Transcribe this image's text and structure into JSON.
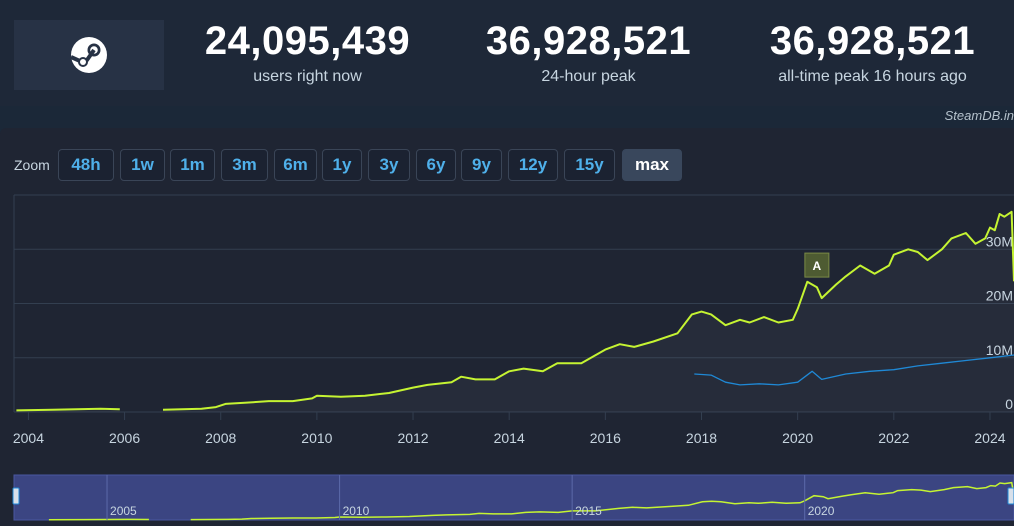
{
  "stats": [
    {
      "value": "24,095,439",
      "label": "users right now"
    },
    {
      "value": "36,928,521",
      "label": "24-hour peak"
    },
    {
      "value": "36,928,521",
      "label": "all-time peak 16 hours ago"
    }
  ],
  "source": "SteamDB.in",
  "zoom": {
    "label": "Zoom",
    "options": [
      "48h",
      "1w",
      "1m",
      "3m",
      "6m",
      "1y",
      "3y",
      "6y",
      "9y",
      "12y",
      "15y",
      "max"
    ],
    "selected": "max"
  },
  "colors": {
    "users": "#c5f432",
    "secondary": "#1f89d6",
    "accent_button": "#4fb0ea"
  },
  "chart_data": {
    "type": "line",
    "x_ticks": [
      "2004",
      "2006",
      "2008",
      "2010",
      "2012",
      "2014",
      "2016",
      "2018",
      "2020",
      "2022",
      "2024"
    ],
    "y_ticks": [
      "0",
      "10M",
      "20M",
      "30M"
    ],
    "ylim": [
      0,
      40000000
    ],
    "xlim": [
      2003.7,
      2024.5
    ],
    "grid": true,
    "annotation": {
      "label": "A",
      "x": 2020.4,
      "y": 24500000
    },
    "series": [
      {
        "color": "#c5f432",
        "segments": [
          [
            [
              2003.75,
              300000
            ],
            [
              2004.5,
              400000
            ],
            [
              2005.0,
              500000
            ],
            [
              2005.5,
              600000
            ],
            [
              2005.9,
              500000
            ]
          ],
          [
            [
              2006.8,
              400000
            ],
            [
              2007.2,
              500000
            ],
            [
              2007.6,
              600000
            ],
            [
              2007.9,
              900000
            ],
            [
              2008.1,
              1500000
            ],
            [
              2008.5,
              1700000
            ],
            [
              2009.0,
              2000000
            ],
            [
              2009.5,
              2000000
            ],
            [
              2009.9,
              2500000
            ],
            [
              2010.0,
              3000000
            ],
            [
              2010.5,
              2800000
            ],
            [
              2011.0,
              3000000
            ],
            [
              2011.5,
              3500000
            ],
            [
              2012.0,
              4500000
            ],
            [
              2012.3,
              5000000
            ],
            [
              2012.8,
              5500000
            ],
            [
              2013.0,
              6500000
            ],
            [
              2013.3,
              6000000
            ],
            [
              2013.7,
              6000000
            ],
            [
              2014.0,
              7500000
            ],
            [
              2014.3,
              8000000
            ],
            [
              2014.7,
              7500000
            ],
            [
              2015.0,
              9000000
            ],
            [
              2015.5,
              9000000
            ],
            [
              2016.0,
              11500000
            ],
            [
              2016.3,
              12500000
            ],
            [
              2016.6,
              12000000
            ],
            [
              2017.0,
              13000000
            ],
            [
              2017.5,
              14500000
            ],
            [
              2017.8,
              18000000
            ],
            [
              2018.0,
              18500000
            ],
            [
              2018.2,
              18000000
            ],
            [
              2018.5,
              16000000
            ],
            [
              2018.8,
              17000000
            ],
            [
              2019.0,
              16500000
            ],
            [
              2019.3,
              17500000
            ],
            [
              2019.6,
              16500000
            ],
            [
              2019.9,
              17000000
            ],
            [
              2020.0,
              19000000
            ],
            [
              2020.2,
              24000000
            ],
            [
              2020.4,
              23000000
            ],
            [
              2020.5,
              21000000
            ],
            [
              2020.8,
              23500000
            ],
            [
              2021.0,
              25000000
            ],
            [
              2021.3,
              27000000
            ],
            [
              2021.6,
              25500000
            ],
            [
              2021.9,
              27000000
            ],
            [
              2022.0,
              29000000
            ],
            [
              2022.3,
              30000000
            ],
            [
              2022.5,
              29500000
            ],
            [
              2022.7,
              28000000
            ],
            [
              2023.0,
              30000000
            ],
            [
              2023.2,
              32000000
            ],
            [
              2023.5,
              33000000
            ],
            [
              2023.7,
              31000000
            ],
            [
              2023.9,
              32000000
            ],
            [
              2024.0,
              34000000
            ],
            [
              2024.1,
              33500000
            ],
            [
              2024.2,
              36500000
            ],
            [
              2024.3,
              36000000
            ],
            [
              2024.45,
              36900000
            ],
            [
              2024.5,
              24100000
            ]
          ]
        ]
      },
      {
        "color": "#1f89d6",
        "segments": [
          [
            [
              2017.85,
              7000000
            ],
            [
              2018.2,
              6800000
            ],
            [
              2018.5,
              5500000
            ],
            [
              2018.8,
              5000000
            ],
            [
              2019.2,
              5200000
            ],
            [
              2019.6,
              5000000
            ],
            [
              2020.0,
              5500000
            ],
            [
              2020.3,
              7500000
            ],
            [
              2020.5,
              6000000
            ],
            [
              2021.0,
              7000000
            ],
            [
              2021.5,
              7500000
            ],
            [
              2022.0,
              7800000
            ],
            [
              2022.5,
              8500000
            ],
            [
              2023.0,
              9000000
            ],
            [
              2023.5,
              9500000
            ],
            [
              2024.0,
              10000000
            ],
            [
              2024.5,
              10500000
            ]
          ]
        ]
      }
    ],
    "navigator": {
      "x_ticks": [
        "2005",
        "2010",
        "2015",
        "2020"
      ],
      "xlim": [
        2003.0,
        2024.5
      ]
    }
  }
}
